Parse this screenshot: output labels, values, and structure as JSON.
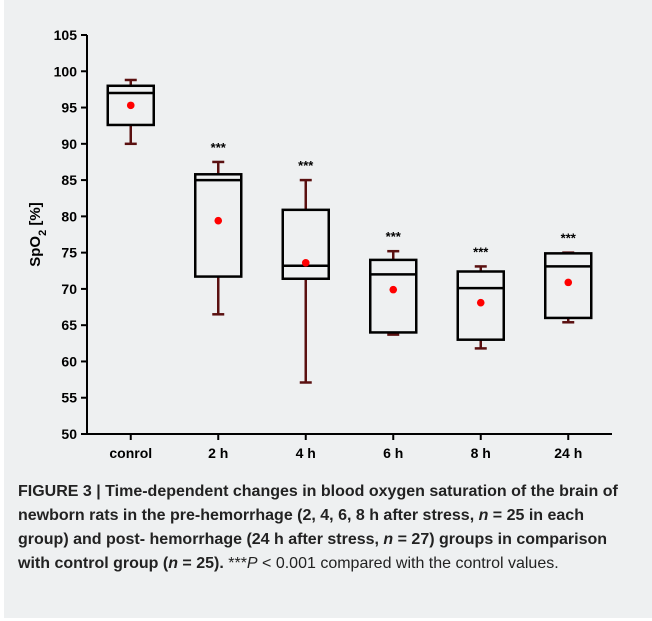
{
  "chart_data": {
    "type": "box",
    "ylabel_main": "SpO",
    "ylabel_sub": "2",
    "ylabel_unit": " [%]",
    "ylim": [
      50,
      105
    ],
    "yticks": [
      50,
      55,
      60,
      65,
      70,
      75,
      80,
      85,
      90,
      95,
      100,
      105
    ],
    "categories": [
      "conrol",
      "2 h",
      "4 h",
      "6 h",
      "8 h",
      "24 h"
    ],
    "boxes": [
      {
        "min": 90.0,
        "q1": 92.6,
        "median": 97.0,
        "q3": 98.0,
        "max": 98.8,
        "mean": 95.3,
        "sig": ""
      },
      {
        "min": 66.5,
        "q1": 71.7,
        "median": 85.0,
        "q3": 85.8,
        "max": 87.5,
        "mean": 79.4,
        "sig": "***"
      },
      {
        "min": 57.1,
        "q1": 71.4,
        "median": 73.2,
        "q3": 80.9,
        "max": 85.0,
        "mean": 73.6,
        "sig": "***"
      },
      {
        "min": 63.7,
        "q1": 64.0,
        "median": 72.0,
        "q3": 74.0,
        "max": 75.2,
        "mean": 69.9,
        "sig": "***"
      },
      {
        "min": 61.8,
        "q1": 63.0,
        "median": 70.1,
        "q3": 72.4,
        "max": 73.1,
        "mean": 68.1,
        "sig": "***"
      },
      {
        "min": 65.4,
        "q1": 66.0,
        "median": 73.1,
        "q3": 74.9,
        "max": 75.0,
        "mean": 70.9,
        "sig": "***"
      }
    ],
    "colors": {
      "box": "#000000",
      "mean_dot": "#ff0000",
      "whisker": "#5a1010",
      "background": "#eef0f1"
    },
    "grid": false,
    "legend": "none"
  },
  "caption": {
    "label": "FIGURE 3 | ",
    "bold_text_1": "Time-dependent changes in blood oxygen saturation of the brain of newborn rats in the pre-hemorrhage (2, 4, 6, 8 h after stress, ",
    "n1_var": "n",
    "bold_text_2": " = 25 in each group) and post- hemorrhage (24 h after stress, ",
    "n2_var": "n",
    "bold_text_3": " = 27) groups in comparison with control group (",
    "n3_var": "n",
    "bold_text_4": " = 25).",
    "stars": " ***",
    "p_var": "P",
    "normal_text": " < 0.001 compared with the control values."
  }
}
